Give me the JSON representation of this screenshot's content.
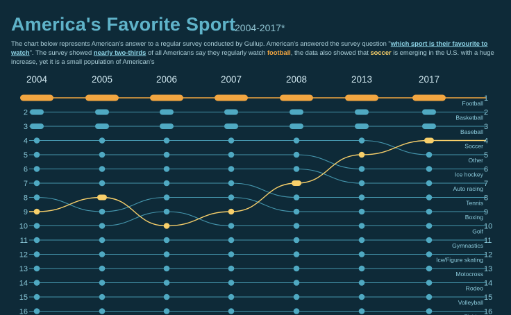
{
  "header": {
    "title": "America's Favorite Sport",
    "subtitle": "2004-2017*",
    "desc": {
      "p1": "The chart below represents American's answer to a regular survey conducted by Gullup. American's answered the survey question \"",
      "link1": "which sport is their favourite to watch",
      "p2": "\". The survey showed ",
      "link2": "nearly two-thirds",
      "p3": " of all Americans say they regularly watch ",
      "football": "football",
      "p4": ", the data also showed that ",
      "soccer": "soccer",
      "p5": " is emerging in the U.S. with a huge increase, yet it is a small population of American's"
    }
  },
  "colors": {
    "background": "#0e2a38",
    "line": "#4fa9c2",
    "football": "#f2a641",
    "soccer": "#f7cf6a"
  },
  "chart_data": {
    "type": "bump",
    "years": [
      "2004",
      "2005",
      "2006",
      "2007",
      "2008",
      "2013",
      "2017"
    ],
    "ranks_visible": [
      1,
      2,
      3,
      4,
      5,
      6,
      7,
      8,
      9,
      10,
      11,
      12,
      13,
      14,
      15,
      16
    ],
    "sports_order_2017": [
      "Football",
      "Basketball",
      "Baseball",
      "Soccer",
      "Other",
      "Ice hockey",
      "Auto racing",
      "Tennis",
      "Boxing",
      "Golf",
      "Gymnastics",
      "Ice/Figure skating",
      "Motocross",
      "Rodeo",
      "Volleyball",
      "Fishing"
    ],
    "highlighted": [
      "Football",
      "Soccer"
    ],
    "series": [
      {
        "name": "Football",
        "ranks": [
          1,
          1,
          1,
          1,
          1,
          1,
          1
        ]
      },
      {
        "name": "Soccer",
        "ranks": [
          9,
          8,
          10,
          9,
          7,
          5,
          4
        ]
      }
    ]
  }
}
